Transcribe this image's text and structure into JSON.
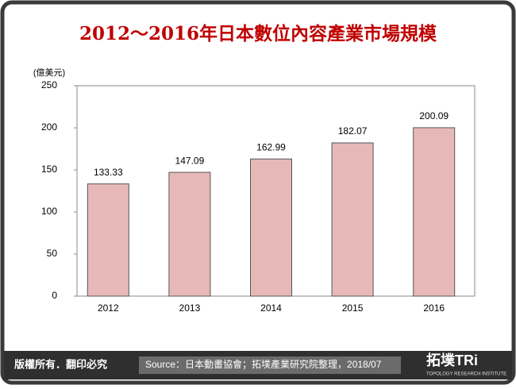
{
  "chart_data": {
    "type": "bar",
    "title": "2012～2016年日本數位內容產業市場規模",
    "y_label": "(億美元)",
    "categories": [
      "2012",
      "2013",
      "2014",
      "2015",
      "2016"
    ],
    "values": [
      133.33,
      147.09,
      162.99,
      182.07,
      200.09
    ],
    "color": "#e6b9b8",
    "ylim": [
      0,
      250
    ],
    "yticks": [
      0,
      50,
      100,
      150,
      200,
      250
    ],
    "grid": false
  },
  "footer": {
    "copyright": "版權所有．翻印必究",
    "source": "Source：日本動畫協會；拓墣產業研究院整理，2018/07",
    "logo": "拓墣TRi",
    "logo_sub": "TOPOLOGY RESEARCH INSTITUTE"
  }
}
